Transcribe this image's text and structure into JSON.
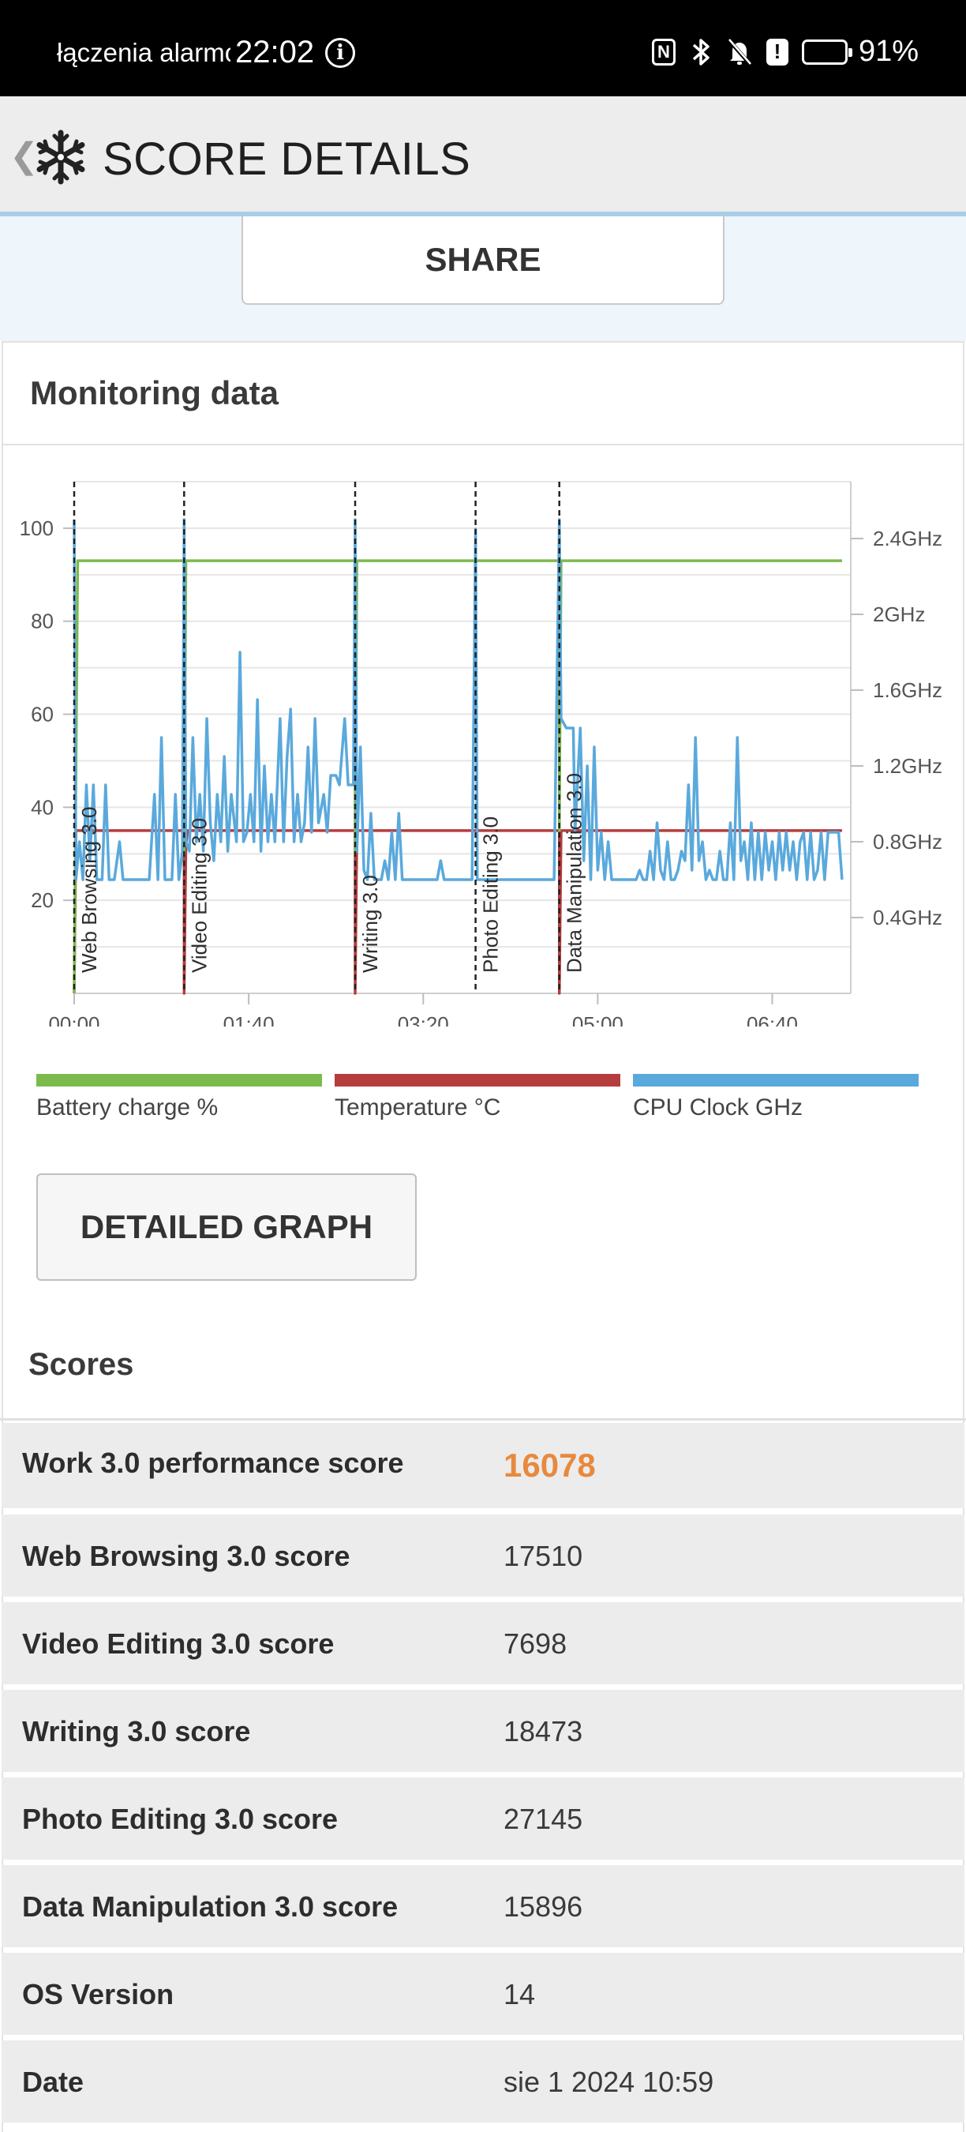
{
  "status_bar": {
    "notification": "łączenia alarmo",
    "time": "22:02",
    "battery": "91%",
    "battery_level": 0.91,
    "icons": [
      "info-icon",
      "nfc-icon",
      "bluetooth-icon",
      "bell-off-icon",
      "alert-icon",
      "battery-icon"
    ]
  },
  "header": {
    "title": "SCORE DETAILS",
    "back_icon": "chevron-left-icon",
    "logo_icon": "snowflake-icon"
  },
  "share": {
    "label": "SHARE"
  },
  "monitoring": {
    "title": "Monitoring data"
  },
  "chart_data": {
    "type": "line",
    "x_ticks": [
      "00:00",
      "01:40",
      "03:20",
      "05:00",
      "06:40"
    ],
    "x_range_seconds": [
      0,
      445
    ],
    "y_left_ticks": [
      "20",
      "40",
      "60",
      "80",
      "100"
    ],
    "y_left_range": [
      0,
      110
    ],
    "y_right_ticks": [
      "0.4GHz",
      "0.8GHz",
      "1.2GHz",
      "1.6GHz",
      "2GHz",
      "2.4GHz"
    ],
    "y_right_range_ghz": [
      0,
      2.7
    ],
    "grid": true,
    "markers": [
      {
        "label": "Web Browsing 3.0",
        "t": 0
      },
      {
        "label": "Video Editing 3.0",
        "t": 63
      },
      {
        "label": "Writing 3.0",
        "t": 161
      },
      {
        "label": "Photo Editing 3.0",
        "t": 230
      },
      {
        "label": "Data Manipulation 3.0",
        "t": 278
      }
    ],
    "series": [
      {
        "name": "Battery charge %",
        "color": "#7cba4e",
        "points": [
          [
            0,
            0
          ],
          [
            2,
            93
          ],
          [
            63,
            93
          ],
          [
            63,
            30
          ],
          [
            64,
            93
          ],
          [
            161,
            93
          ],
          [
            161,
            30
          ],
          [
            162,
            93
          ],
          [
            230,
            93
          ],
          [
            278,
            93
          ],
          [
            278,
            35
          ],
          [
            279,
            93
          ],
          [
            440,
            93
          ]
        ]
      },
      {
        "name": "Temperature °C",
        "color": "#b63d3d",
        "points": [
          [
            0,
            0
          ],
          [
            1,
            35
          ],
          [
            63,
            35
          ],
          [
            63,
            0
          ],
          [
            64,
            32
          ],
          [
            65,
            35
          ],
          [
            161,
            35
          ],
          [
            161,
            0
          ],
          [
            162,
            35
          ],
          [
            230,
            35
          ],
          [
            278,
            35
          ],
          [
            278,
            0
          ],
          [
            279,
            35
          ],
          [
            440,
            35
          ]
        ]
      },
      {
        "name": "CPU Clock GHz",
        "color": "#5aa9dc",
        "points": [
          [
            0,
            2.5
          ],
          [
            1,
            0.6
          ],
          [
            3,
            0.8
          ],
          [
            5,
            0.6
          ],
          [
            7,
            1.1
          ],
          [
            9,
            0.7
          ],
          [
            11,
            1.1
          ],
          [
            13,
            0.6
          ],
          [
            16,
            0.6
          ],
          [
            18,
            1.1
          ],
          [
            20,
            0.6
          ],
          [
            23,
            0.6
          ],
          [
            26,
            0.8
          ],
          [
            28,
            0.6
          ],
          [
            32,
            0.6
          ],
          [
            36,
            0.6
          ],
          [
            40,
            0.6
          ],
          [
            43,
            0.6
          ],
          [
            46,
            1.05
          ],
          [
            48,
            0.6
          ],
          [
            50,
            1.35
          ],
          [
            52,
            0.6
          ],
          [
            56,
            0.6
          ],
          [
            58,
            1.05
          ],
          [
            60,
            0.6
          ],
          [
            62,
            0.75
          ],
          [
            63,
            2.5
          ],
          [
            64,
            0.8
          ],
          [
            66,
            0.75
          ],
          [
            68,
            1.35
          ],
          [
            70,
            0.8
          ],
          [
            72,
            1.05
          ],
          [
            74,
            0.75
          ],
          [
            76,
            1.45
          ],
          [
            78,
            0.9
          ],
          [
            80,
            0.7
          ],
          [
            82,
            1.05
          ],
          [
            84,
            0.8
          ],
          [
            86,
            1.25
          ],
          [
            88,
            0.75
          ],
          [
            90,
            1.05
          ],
          [
            93,
            0.8
          ],
          [
            95,
            1.8
          ],
          [
            97,
            0.8
          ],
          [
            99,
            0.85
          ],
          [
            101,
            1.05
          ],
          [
            103,
            0.8
          ],
          [
            105,
            1.55
          ],
          [
            107,
            0.75
          ],
          [
            109,
            1.2
          ],
          [
            111,
            0.8
          ],
          [
            113,
            1.05
          ],
          [
            115,
            0.8
          ],
          [
            118,
            1.45
          ],
          [
            120,
            0.8
          ],
          [
            122,
            1.25
          ],
          [
            124,
            1.5
          ],
          [
            126,
            0.8
          ],
          [
            128,
            1.05
          ],
          [
            130,
            0.8
          ],
          [
            132,
            0.9
          ],
          [
            134,
            1.3
          ],
          [
            136,
            0.85
          ],
          [
            138,
            1.45
          ],
          [
            140,
            0.9
          ],
          [
            143,
            1.05
          ],
          [
            145,
            0.85
          ],
          [
            147,
            1.15
          ],
          [
            150,
            1.15
          ],
          [
            152,
            1.1
          ],
          [
            155,
            1.45
          ],
          [
            157,
            1.1
          ],
          [
            159,
            1.1
          ],
          [
            160,
            1.1
          ],
          [
            161,
            2.5
          ],
          [
            162,
            0.75
          ],
          [
            164,
            1.3
          ],
          [
            166,
            0.65
          ],
          [
            168,
            0.6
          ],
          [
            170,
            0.95
          ],
          [
            172,
            0.6
          ],
          [
            174,
            0.6
          ],
          [
            176,
            0.6
          ],
          [
            178,
            0.7
          ],
          [
            180,
            0.6
          ],
          [
            182,
            0.85
          ],
          [
            184,
            0.6
          ],
          [
            186,
            0.95
          ],
          [
            188,
            0.6
          ],
          [
            190,
            0.6
          ],
          [
            192,
            0.6
          ],
          [
            194,
            0.6
          ],
          [
            196,
            0.6
          ],
          [
            198,
            0.6
          ],
          [
            200,
            0.6
          ],
          [
            202,
            0.6
          ],
          [
            204,
            0.6
          ],
          [
            206,
            0.6
          ],
          [
            208,
            0.6
          ],
          [
            210,
            0.7
          ],
          [
            212,
            0.6
          ],
          [
            215,
            0.6
          ],
          [
            218,
            0.6
          ],
          [
            220,
            0.6
          ],
          [
            222,
            0.6
          ],
          [
            225,
            0.6
          ],
          [
            228,
            0.6
          ],
          [
            230,
            2.45
          ],
          [
            231,
            0.6
          ],
          [
            233,
            0.6
          ],
          [
            236,
            0.6
          ],
          [
            240,
            0.6
          ],
          [
            244,
            0.6
          ],
          [
            248,
            0.6
          ],
          [
            252,
            0.6
          ],
          [
            256,
            0.6
          ],
          [
            260,
            0.6
          ],
          [
            264,
            0.6
          ],
          [
            268,
            0.6
          ],
          [
            272,
            0.6
          ],
          [
            275,
            0.6
          ],
          [
            278,
            2.5
          ],
          [
            279,
            1.45
          ],
          [
            282,
            1.4
          ],
          [
            284,
            1.4
          ],
          [
            286,
            1.4
          ],
          [
            287,
            0.85
          ],
          [
            290,
            1.4
          ],
          [
            292,
            0.7
          ],
          [
            294,
            1.2
          ],
          [
            296,
            0.6
          ],
          [
            298,
            1.3
          ],
          [
            300,
            0.65
          ],
          [
            302,
            0.85
          ],
          [
            304,
            0.6
          ],
          [
            306,
            0.8
          ],
          [
            308,
            0.6
          ],
          [
            310,
            0.6
          ],
          [
            312,
            0.6
          ],
          [
            314,
            0.6
          ],
          [
            316,
            0.6
          ],
          [
            318,
            0.6
          ],
          [
            320,
            0.6
          ],
          [
            322,
            0.6
          ],
          [
            324,
            0.65
          ],
          [
            326,
            0.6
          ],
          [
            328,
            0.6
          ],
          [
            330,
            0.75
          ],
          [
            332,
            0.6
          ],
          [
            334,
            0.9
          ],
          [
            336,
            0.65
          ],
          [
            338,
            0.6
          ],
          [
            340,
            0.8
          ],
          [
            342,
            0.6
          ],
          [
            344,
            0.6
          ],
          [
            346,
            0.65
          ],
          [
            348,
            0.75
          ],
          [
            350,
            0.7
          ],
          [
            352,
            1.1
          ],
          [
            354,
            0.65
          ],
          [
            356,
            1.35
          ],
          [
            358,
            0.7
          ],
          [
            360,
            0.8
          ],
          [
            362,
            0.6
          ],
          [
            364,
            0.65
          ],
          [
            366,
            0.6
          ],
          [
            368,
            0.6
          ],
          [
            370,
            0.75
          ],
          [
            372,
            0.6
          ],
          [
            374,
            0.6
          ],
          [
            376,
            0.9
          ],
          [
            378,
            0.6
          ],
          [
            380,
            1.35
          ],
          [
            382,
            0.7
          ],
          [
            384,
            0.8
          ],
          [
            386,
            0.6
          ],
          [
            388,
            0.9
          ],
          [
            390,
            0.6
          ],
          [
            392,
            0.85
          ],
          [
            394,
            0.6
          ],
          [
            396,
            0.85
          ],
          [
            398,
            0.65
          ],
          [
            400,
            0.8
          ],
          [
            402,
            0.6
          ],
          [
            404,
            0.85
          ],
          [
            406,
            0.65
          ],
          [
            408,
            0.85
          ],
          [
            410,
            0.65
          ],
          [
            412,
            0.8
          ],
          [
            414,
            0.6
          ],
          [
            416,
            0.8
          ],
          [
            418,
            0.85
          ],
          [
            420,
            0.6
          ],
          [
            422,
            0.85
          ],
          [
            424,
            0.6
          ],
          [
            426,
            0.65
          ],
          [
            428,
            0.85
          ],
          [
            430,
            0.6
          ],
          [
            432,
            0.85
          ],
          [
            434,
            0.85
          ],
          [
            436,
            0.85
          ],
          [
            438,
            0.85
          ],
          [
            440,
            0.6
          ]
        ]
      }
    ]
  },
  "legend": [
    {
      "label": "Battery charge %",
      "color": "#7cba4e"
    },
    {
      "label": "Temperature °C",
      "color": "#b63d3d"
    },
    {
      "label": "CPU Clock GHz",
      "color": "#5aa9dc"
    }
  ],
  "detailed_graph": {
    "label": "DETAILED GRAPH"
  },
  "scores": {
    "title": "Scores",
    "rows": [
      {
        "label": "Work 3.0 performance score",
        "value": "16078"
      },
      {
        "label": "Web Browsing 3.0 score",
        "value": "17510"
      },
      {
        "label": "Video Editing 3.0 score",
        "value": "7698"
      },
      {
        "label": "Writing 3.0 score",
        "value": "18473"
      },
      {
        "label": "Photo Editing 3.0 score",
        "value": "27145"
      },
      {
        "label": "Data Manipulation 3.0 score",
        "value": "15896"
      },
      {
        "label": "OS Version",
        "value": "14"
      },
      {
        "label": "Date",
        "value": "sie 1 2024 10:59"
      }
    ]
  }
}
